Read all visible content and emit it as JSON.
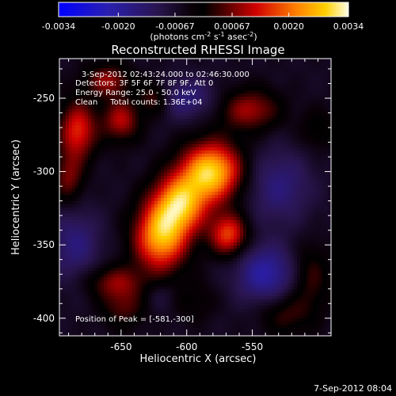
{
  "chart_data": {
    "type": "heatmap",
    "title": "Reconstructed RHESSI Image",
    "colorbar": {
      "range": [
        -0.0034,
        0.0034
      ],
      "tick_labels": [
        "-0.0034",
        "-0.0020",
        "-0.00067",
        "0.00067",
        "0.0020",
        "0.0034"
      ],
      "tick_values": [
        -0.0034,
        -0.002,
        -0.00067,
        0.00067,
        0.002,
        0.0034
      ],
      "units_prefix": "(photons cm",
      "units_exp1": "-2",
      "units_mid": " s",
      "units_exp2": "-1",
      "units_mid2": " asec",
      "units_exp3": "-2",
      "units_suffix": ")"
    },
    "xlabel": "Heliocentric X (arcsec)",
    "ylabel": "Heliocentric Y (arcsec)",
    "xlim": [
      -697,
      -490
    ],
    "ylim": [
      -412,
      -223
    ],
    "x_ticks": [
      -650,
      -600,
      -550
    ],
    "x_tick_labels": [
      "-650",
      "-600",
      "-550"
    ],
    "y_ticks": [
      -250,
      -300,
      -350,
      -400
    ],
    "y_tick_labels": [
      "-250",
      "-300",
      "-350",
      "-400"
    ],
    "annotations": {
      "time": "3-Sep-2012 02:43:24.000 to 02:46:30.000",
      "detectors": "Detectors: 3F 5F 6F 7F 8F 9F, Att 0",
      "energy": "Energy Range: 25.0 - 50.0 keV",
      "clean": "Clean     Total counts: 1.36E+04",
      "peak": "Position of Peak = [-581,-300]"
    },
    "peak": [
      -581,
      -300
    ],
    "sources": [
      {
        "x": -581,
        "y": -300,
        "sx": 16,
        "sy": 14,
        "amp": 0.0034
      },
      {
        "x": -605,
        "y": -322,
        "sx": 14,
        "sy": 14,
        "amp": 0.0029
      },
      {
        "x": -620,
        "y": -345,
        "sx": 14,
        "sy": 16,
        "amp": 0.003
      },
      {
        "x": -568,
        "y": -343,
        "sx": 10,
        "sy": 10,
        "amp": 0.0022
      },
      {
        "x": -552,
        "y": -258,
        "sx": 16,
        "sy": 10,
        "amp": 0.0015
      },
      {
        "x": -683,
        "y": -272,
        "sx": 10,
        "sy": 14,
        "amp": 0.002
      },
      {
        "x": -660,
        "y": -238,
        "sx": 12,
        "sy": 8,
        "amp": 0.0014
      },
      {
        "x": -650,
        "y": -265,
        "sx": 10,
        "sy": 10,
        "amp": 0.0016
      },
      {
        "x": -625,
        "y": -250,
        "sx": 8,
        "sy": 8,
        "amp": 0.0011
      },
      {
        "x": -690,
        "y": -305,
        "sx": 8,
        "sy": 12,
        "amp": 0.0012
      },
      {
        "x": -655,
        "y": -375,
        "sx": 16,
        "sy": 8,
        "amp": 0.0012
      },
      {
        "x": -648,
        "y": -392,
        "sx": 12,
        "sy": 10,
        "amp": 0.001
      },
      {
        "x": -525,
        "y": -397,
        "sx": 14,
        "sy": 10,
        "amp": 0.0009
      },
      {
        "x": -505,
        "y": -372,
        "sx": 10,
        "sy": 16,
        "amp": 0.0009
      },
      {
        "x": -500,
        "y": -272,
        "sx": 10,
        "sy": 10,
        "amp": 0.0006
      },
      {
        "x": -595,
        "y": -388,
        "sx": 12,
        "sy": 10,
        "amp": 0.0005
      },
      {
        "x": -530,
        "y": -310,
        "sx": 18,
        "sy": 18,
        "amp": -0.001
      },
      {
        "x": -540,
        "y": -370,
        "sx": 16,
        "sy": 14,
        "amp": -0.0015
      },
      {
        "x": -600,
        "y": -250,
        "sx": 16,
        "sy": 10,
        "amp": -0.001
      },
      {
        "x": -685,
        "y": -350,
        "sx": 14,
        "sy": 18,
        "amp": -0.001
      },
      {
        "x": -620,
        "y": -385,
        "sx": 10,
        "sy": 8,
        "amp": -0.0004
      }
    ]
  },
  "footer": {
    "date_stamp": "7-Sep-2012 08:04"
  }
}
